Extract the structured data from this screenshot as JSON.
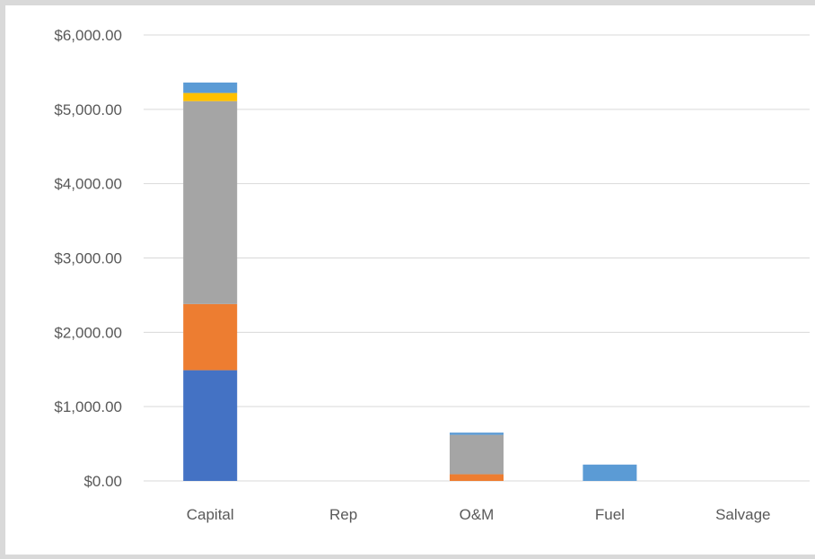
{
  "colors": {
    "background": "#ffffff",
    "page_border": "#d9d9d9",
    "gridline": "#d9d9d9",
    "text": "#595959"
  },
  "chart_data": {
    "type": "bar",
    "stacked": true,
    "categories": [
      "Capital",
      "Rep",
      "O&M",
      "Fuel",
      "Salvage"
    ],
    "series": [
      {
        "color": "#4472c4",
        "values": [
          1490,
          0,
          0,
          0,
          0
        ]
      },
      {
        "color": "#ed7d31",
        "values": [
          890,
          0,
          90,
          0,
          0
        ]
      },
      {
        "color": "#a5a5a5",
        "values": [
          2730,
          0,
          530,
          0,
          0
        ]
      },
      {
        "color": "#ffc000",
        "values": [
          110,
          0,
          0,
          0,
          0
        ]
      },
      {
        "color": "#5b9bd5",
        "values": [
          140,
          0,
          30,
          220,
          0
        ]
      }
    ],
    "ylim": [
      0,
      6000
    ],
    "y_ticks": [
      0,
      1000,
      2000,
      3000,
      4000,
      5000,
      6000
    ],
    "y_tick_labels": [
      "$0.00",
      "$1,000.00",
      "$2,000.00",
      "$3,000.00",
      "$4,000.00",
      "$5,000.00",
      "$6,000.00"
    ],
    "grid": true,
    "legend": "none",
    "title": "",
    "xlabel": "",
    "ylabel": ""
  }
}
